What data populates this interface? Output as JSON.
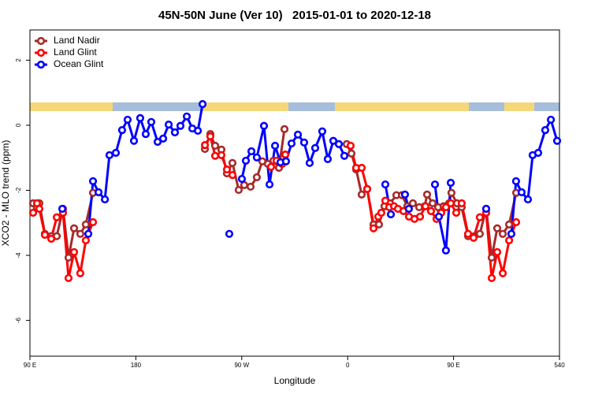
{
  "chart_data": {
    "type": "line",
    "title": "45N-50N June (Ver 10)   2015-01-01 to 2020-12-18",
    "x_label": "Longitude",
    "y_label": "XCO2 - MLO trend (ppm)",
    "xlim": [
      90,
      540
    ],
    "ylim": [
      -7.1,
      2.93
    ],
    "xticks": [
      {
        "value": 90,
        "label": "90 E"
      },
      180,
      {
        "value": 270,
        "label": "90 W"
      },
      {
        "value": 360,
        "label": "0"
      },
      {
        "value": 450,
        "label": "90 E"
      },
      540
    ],
    "yticks": [
      2,
      0,
      -2,
      -4,
      -6
    ],
    "legend": "top-left",
    "series": [
      {
        "name": "Land Nadir",
        "color": "#a52a2a",
        "x": [
          92.7,
          96.0,
          98.0,
          102.7,
          108.1,
          112.8,
          118.1,
          122.8,
          127.5,
          132.8,
          137.5,
          143.6,
          null,
          238.7,
          243.3,
          247.4,
          252.7,
          257.4,
          262.1,
          267.4,
          272.1,
          277.5,
          282.8,
          287.5,
          292.2,
          296.9,
          301.6,
          306.3,
          null,
          359.2,
          363.2,
          367.2,
          371.9,
          376.6,
          382,
          386.6,
          391.3,
          396,
          401.4,
          406.1,
          410.7,
          415.4,
          420.8,
          425.5,
          427.5,
          432.2,
          436.9,
          441.5,
          446.2,
          448.2,
          452.9,
          456.9,
          462.3,
          467.6,
          472.3,
          477.7,
          482.4,
          487.1,
          491.8,
          497.2,
          503.2
        ],
        "values": [
          -2.4,
          -2.54,
          -2.4,
          -3.34,
          -3.41,
          -3.41,
          -2.57,
          -4.07,
          -3.17,
          -3.34,
          -3.05,
          -2.08,
          null,
          -0.73,
          -0.27,
          -0.63,
          -0.75,
          -1.48,
          -1.16,
          -1.99,
          -1.84,
          -1.89,
          -1.6,
          -1.11,
          -1.19,
          -1.09,
          -1.31,
          -0.12,
          null,
          -0.58,
          -0.87,
          -1.36,
          -2.13,
          -1.96,
          -3.05,
          -3.05,
          -2.49,
          -2.4,
          -2.15,
          -2.15,
          -2.49,
          -2.4,
          -2.52,
          -2.49,
          -2.13,
          -2.4,
          -2.52,
          -2.49,
          -2.4,
          -2.08,
          -2.4,
          -2.52,
          -3.41,
          -3.41,
          -3.34,
          -2.57,
          -4.07,
          -3.17,
          -3.34,
          -3.05,
          -2.08
        ]
      },
      {
        "name": "Land Glint",
        "color": "#ff0000",
        "x": [
          92.7,
          96.0,
          98.0,
          102.7,
          108.1,
          112.8,
          118.1,
          122.8,
          127.5,
          132.8,
          137.5,
          143.6,
          null,
          238.7,
          243.3,
          247.4,
          252.7,
          257.4,
          262.1,
          null,
          294.9,
          299.6,
          304.3,
          307,
          null,
          362.5,
          367.2,
          371.9,
          376.6,
          382,
          386,
          388.6,
          392,
          395.3,
          399.4,
          402.7,
          407.4,
          412.1,
          416.8,
          421.5,
          426.1,
          430.8,
          435.5,
          439.5,
          443.5,
          447.6,
          452.3,
          456.9,
          462.3,
          467,
          472.3,
          477.7,
          482.4,
          487.1,
          491.8,
          497.2,
          503.2
        ],
        "values": [
          -2.69,
          -2.4,
          -2.57,
          -3.37,
          -3.49,
          -2.83,
          -2.69,
          -4.7,
          -3.9,
          -4.55,
          -3.54,
          -2.98,
          null,
          -0.61,
          -0.34,
          -0.94,
          -0.92,
          -1.36,
          -1.53,
          null,
          -1.28,
          -1.09,
          -1.19,
          -0.9,
          null,
          -0.63,
          -1.31,
          -1.31,
          -1.96,
          -3.17,
          -2.81,
          -2.69,
          -2.32,
          -2.52,
          -2.49,
          -2.57,
          -2.64,
          -2.81,
          -2.88,
          -2.81,
          -2.49,
          -2.64,
          -2.88,
          -2.69,
          -2.52,
          -2.4,
          -2.69,
          -2.4,
          -3.34,
          -3.46,
          -2.83,
          -2.69,
          -4.7,
          -3.9,
          -4.55,
          -3.54,
          -2.98
        ]
      },
      {
        "name": "Ocean Glint",
        "color": "#0000ff",
        "x": [
          117.5,
          null,
          139.6,
          143.6,
          148.3,
          153.7,
          157.6,
          163,
          168.3,
          173,
          178.4,
          183.7,
          188.4,
          193.1,
          198.5,
          203.2,
          207.9,
          213.2,
          217.9,
          223.3,
          228,
          232.7,
          236.7,
          null,
          259.4,
          null,
          270.1,
          273.5,
          278.2,
          282.8,
          288.9,
          293.6,
          298.3,
          302.9,
          307.6,
          312.3,
          317.7,
          323,
          327.7,
          332.4,
          338.4,
          343.1,
          347.8,
          352.5,
          357.2,
          null,
          392,
          396.7,
          null,
          408.7,
          412,
          null,
          434.2,
          437.5,
          443.5,
          447.6,
          null,
          477.7,
          null,
          499.1,
          503.1,
          507.8,
          513.2,
          517.2,
          521.9,
          527.9,
          532.7,
          538
        ],
        "values": [
          -2.57,
          null,
          -3.34,
          -1.72,
          -2.06,
          -2.28,
          -0.92,
          -0.85,
          -0.15,
          0.17,
          -0.48,
          0.22,
          -0.27,
          0.1,
          -0.51,
          -0.41,
          0.02,
          -0.22,
          -0.02,
          0.27,
          -0.1,
          -0.17,
          0.65,
          null,
          -3.34,
          null,
          -1.65,
          -1.09,
          -0.8,
          -0.99,
          -0.02,
          -1.82,
          -0.63,
          -1.14,
          -1.11,
          -0.56,
          -0.29,
          -0.53,
          -1.16,
          -0.7,
          -0.19,
          -1.04,
          -0.48,
          -0.58,
          -0.94,
          null,
          -1.82,
          -2.74,
          null,
          -2.13,
          -2.57,
          null,
          -1.82,
          -2.81,
          -3.85,
          -1.77,
          null,
          -2.57,
          null,
          -3.34,
          -1.72,
          -2.06,
          -2.28,
          -0.92,
          -0.85,
          -0.15,
          0.17,
          -0.48
        ]
      }
    ]
  }
}
